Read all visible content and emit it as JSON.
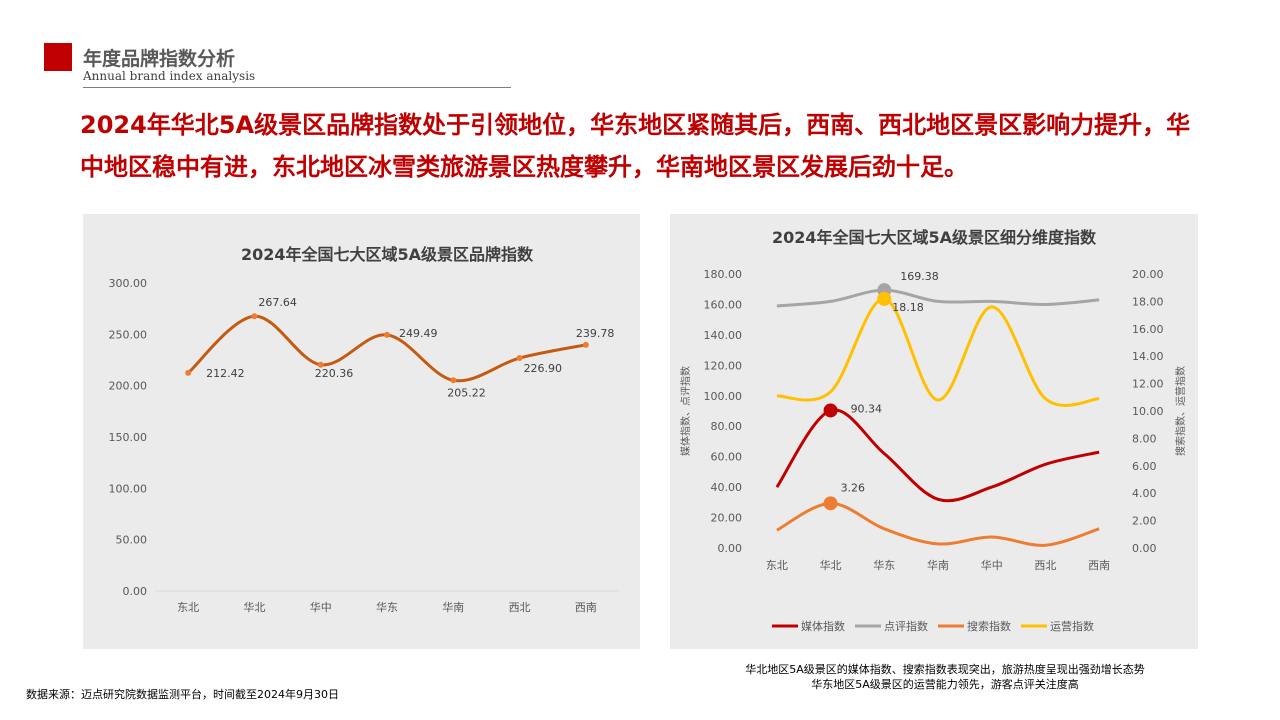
{
  "section": {
    "title": "年度品牌指数分析",
    "subtitle": "Annual brand index analysis"
  },
  "headline": "2024年华北5A级景区品牌指数处于引领地位，华东地区紧随其后，西南、西北地区景区影响力提升，华中地区稳中有进，东北地区冰雪类旅游景区热度攀升，华南地区景区发展后劲十足。",
  "colors": {
    "accent": "#c00000",
    "brand_line": "#c55a11",
    "media": "#c00000",
    "rating": "#a5a5a5",
    "search": "#ed7d31",
    "ops": "#ffc000"
  },
  "chart_data": [
    {
      "type": "line",
      "title": "2024年全国七大区域5A级景区品牌指数",
      "categories": [
        "东北",
        "华北",
        "华中",
        "华东",
        "华南",
        "西北",
        "西南"
      ],
      "series": [
        {
          "name": "",
          "values": [
            212.42,
            267.64,
            220.36,
            249.49,
            205.22,
            226.9,
            239.78
          ]
        }
      ],
      "data_labels": [
        "212.42",
        "267.64",
        "220.36",
        "249.49",
        "205.22",
        "226.90",
        "239.78"
      ],
      "ylim": [
        0,
        300
      ],
      "yticks": [
        "0.00",
        "50.00",
        "100.00",
        "150.00",
        "200.00",
        "250.00",
        "300.00"
      ],
      "grid": false,
      "smooth": true
    },
    {
      "type": "line",
      "title": "2024年全国七大区域5A级景区细分维度指数",
      "categories": [
        "东北",
        "华北",
        "华东",
        "华南",
        "华中",
        "西北",
        "西南"
      ],
      "ylabel_left": "媒体指数、点评指数",
      "ylabel_right": "搜索指数、运营指数",
      "ylim_left": [
        0,
        180
      ],
      "ylim_right": [
        0,
        20
      ],
      "yticks_left": [
        "0.00",
        "20.00",
        "40.00",
        "60.00",
        "80.00",
        "100.00",
        "120.00",
        "140.00",
        "160.00",
        "180.00"
      ],
      "yticks_right": [
        "0.00",
        "2.00",
        "4.00",
        "6.00",
        "8.00",
        "10.00",
        "12.00",
        "14.00",
        "16.00",
        "18.00",
        "20.00"
      ],
      "series": [
        {
          "name": "媒体指数",
          "axis": "left",
          "values": [
            40,
            90.34,
            62,
            32,
            40,
            55,
            63
          ],
          "highlight_index": 1,
          "highlight_label": "90.34"
        },
        {
          "name": "点评指数",
          "axis": "left",
          "values": [
            159,
            162,
            169.38,
            162,
            162,
            160,
            163
          ],
          "highlight_index": 2,
          "highlight_label": "169.38"
        },
        {
          "name": "搜索指数",
          "axis": "right",
          "values": [
            1.3,
            3.26,
            1.4,
            0.3,
            0.8,
            0.2,
            1.4
          ],
          "highlight_index": 1,
          "highlight_label": "3.26"
        },
        {
          "name": "运营指数",
          "axis": "right",
          "values": [
            11.1,
            11.4,
            18.18,
            10.8,
            17.6,
            10.9,
            10.9
          ],
          "highlight_index": 2,
          "highlight_label": "18.18"
        }
      ],
      "legend": "bottom",
      "grid": false,
      "smooth": true
    }
  ],
  "note": {
    "line1": "华北地区5A级景区的媒体指数、搜索指数表现突出，旅游热度呈现出强劲增长态势",
    "line2": "华东地区5A级景区的运营能力领先，游客点评关注度高"
  },
  "source": "数据来源：迈点研究院数据监测平台，时间截至2024年9月30日"
}
